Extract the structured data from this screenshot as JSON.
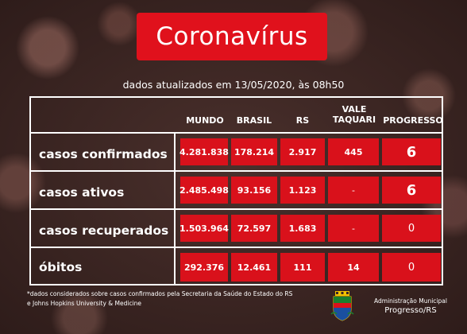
{
  "title": "Coronavírus",
  "subtitle": "dados atualizados em 13/05/2020, às 08h50",
  "columns": [
    "MUNDO",
    "BRASIL",
    "RS",
    "VALE\nTAQUARI",
    "PROGRESSO"
  ],
  "column_vale_line1": "VALE",
  "column_vale_line2": "TAQUARI",
  "rows": [
    {
      "label": "casos confirmados",
      "values": [
        "4.281.838",
        "178.214",
        "2.917",
        "445",
        "6"
      ]
    },
    {
      "label": "casos ativos",
      "values": [
        "2.485.498",
        "93.156",
        "1.123",
        "-",
        "6"
      ]
    },
    {
      "label": "casos recuperados",
      "values": [
        "1.503.964",
        "72.597",
        "1.683",
        "-",
        "0"
      ]
    },
    {
      "label": "óbitos",
      "values": [
        "292.376",
        "12.461",
        "111",
        "14",
        "0"
      ]
    }
  ],
  "footnote_line1": "*dados considerados sobre casos confirmados pela Secretaria da Saúde do Estado do RS",
  "footnote_line2": "e Johns Hopkins University & Medicine",
  "admin_line1": "Administração Municipal",
  "admin_line2": "Progresso/RS",
  "colors": {
    "accent_red": "#e0111c",
    "cell_red": "#d9111b",
    "cell_dark_red": "#a30f16",
    "text": "#ffffff"
  },
  "icons": [
    "coat-of-arms-icon"
  ]
}
